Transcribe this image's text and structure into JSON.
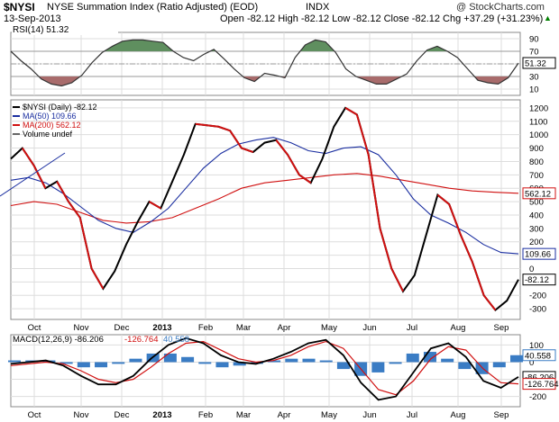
{
  "header": {
    "symbol": "$NYSI",
    "name": "NYSE Summation Index (Ratio Adjusted) (EOD)",
    "exchange": "INDX",
    "date": "13-Sep-2013",
    "copyright": "@ StockCharts.com",
    "ohlc": "Open -82.12  High -82.12  Low -82.12  Close -82.12  Chg +37.29 (+31.23%)",
    "ohlc_arrow": "▲"
  },
  "chart_data": [
    {
      "type": "line",
      "title": "RSI(14) 51.32",
      "y_ticks": [
        90,
        70,
        50,
        30,
        10
      ],
      "levels": [
        70,
        30
      ],
      "last_value_label": "51.32",
      "ylim": [
        0,
        100
      ],
      "series": [
        {
          "name": "RSI(14)",
          "color": "#333333",
          "values": [
            70,
            55,
            42,
            26,
            18,
            15,
            20,
            32,
            52,
            68,
            78,
            86,
            88,
            88,
            86,
            84,
            70,
            60,
            55,
            65,
            73,
            58,
            42,
            28,
            22,
            35,
            32,
            28,
            60,
            80,
            88,
            85,
            68,
            42,
            30,
            24,
            18,
            18,
            26,
            34,
            55,
            72,
            78,
            70,
            60,
            42,
            24,
            20,
            18,
            28,
            51.32
          ]
        }
      ],
      "fill_over_color": "#5f8f5f",
      "fill_under_color": "#a86b6b"
    },
    {
      "type": "line",
      "title": "$NYSI (Daily) -82.12",
      "ylim": [
        -380,
        1260
      ],
      "y_ticks": [
        1200,
        1100,
        1000,
        900,
        800,
        700,
        600,
        500,
        400,
        300,
        200,
        100,
        0,
        -100,
        -200,
        -300
      ],
      "x_tick_labels": [
        "Oct",
        "Nov",
        "Dec",
        "2013",
        "Feb",
        "Mar",
        "Apr",
        "May",
        "Jun",
        "Jul",
        "Aug",
        "Sep"
      ],
      "legend": [
        "$NYSI (Daily) -82.12",
        "MA(50) 109.66",
        "MA(200) 562.12",
        "Volume undef"
      ],
      "series": [
        {
          "name": "$NYSI (Daily)",
          "color": "#000000",
          "values": [
            820,
            900,
            770,
            600,
            650,
            500,
            380,
            0,
            -150,
            -20,
            180,
            350,
            500,
            450,
            650,
            850,
            1080,
            1070,
            1060,
            1030,
            900,
            870,
            940,
            960,
            850,
            700,
            640,
            820,
            1060,
            1200,
            1150,
            850,
            300,
            0,
            -170,
            -50,
            250,
            550,
            480,
            250,
            50,
            -200,
            -310,
            -240,
            -82.12
          ]
        },
        {
          "name": "MA(50)",
          "color": "#1a2ea0",
          "values": [
            660,
            680,
            640,
            560,
            460,
            360,
            300,
            270,
            350,
            450,
            600,
            750,
            860,
            930,
            960,
            980,
            940,
            880,
            860,
            900,
            910,
            850,
            700,
            520,
            400,
            340,
            270,
            180,
            120,
            109.66
          ]
        },
        {
          "name": "MA(200)",
          "color": "#d01010",
          "values": [
            470,
            500,
            480,
            420,
            360,
            340,
            350,
            380,
            450,
            520,
            600,
            640,
            660,
            680,
            700,
            710,
            690,
            660,
            630,
            600,
            580,
            570,
            562.12
          ]
        }
      ],
      "last_labels": {
        "ma200": "562.12",
        "ma50": "109.66",
        "price": "-82.12"
      }
    },
    {
      "type": "line",
      "title": "MACD(12,26,9) -86.206, -126.764, 40.558",
      "ylim": [
        -260,
        160
      ],
      "y_ticks": [
        100,
        0,
        -100,
        -200
      ],
      "x_tick_labels": [
        "Oct",
        "Nov",
        "Dec",
        "2013",
        "Feb",
        "Mar",
        "Apr",
        "May",
        "Jun",
        "Jul",
        "Aug",
        "Sep"
      ],
      "legend": [
        "MACD(12,26,9) -86.206",
        "-126.764",
        "40.558"
      ],
      "series": [
        {
          "name": "MACD",
          "color": "#000000",
          "values": [
            -10,
            0,
            10,
            -20,
            -80,
            -130,
            -130,
            -80,
            20,
            100,
            140,
            110,
            40,
            0,
            -10,
            20,
            60,
            110,
            130,
            40,
            -120,
            -220,
            -200,
            -60,
            80,
            110,
            30,
            -110,
            -150,
            -86.206
          ]
        },
        {
          "name": "Signal",
          "color": "#d01010",
          "values": [
            -20,
            -10,
            0,
            -10,
            -50,
            -100,
            -120,
            -100,
            -30,
            50,
            110,
            120,
            70,
            20,
            0,
            10,
            40,
            90,
            120,
            80,
            -40,
            -160,
            -190,
            -110,
            20,
            90,
            70,
            -40,
            -120,
            -126.764
          ]
        }
      ],
      "histogram_color": "#3a7cc4",
      "histogram_values": [
        10,
        10,
        10,
        -10,
        -30,
        -30,
        -10,
        20,
        50,
        50,
        30,
        -10,
        -30,
        -20,
        -10,
        10,
        20,
        20,
        10,
        -40,
        -80,
        -60,
        -10,
        50,
        60,
        20,
        -40,
        -70,
        -30,
        40.558
      ],
      "last_labels": {
        "hist": "40.558",
        "macd": "-86.206",
        "signal": "-126.764",
        "tick": "-200"
      }
    }
  ]
}
